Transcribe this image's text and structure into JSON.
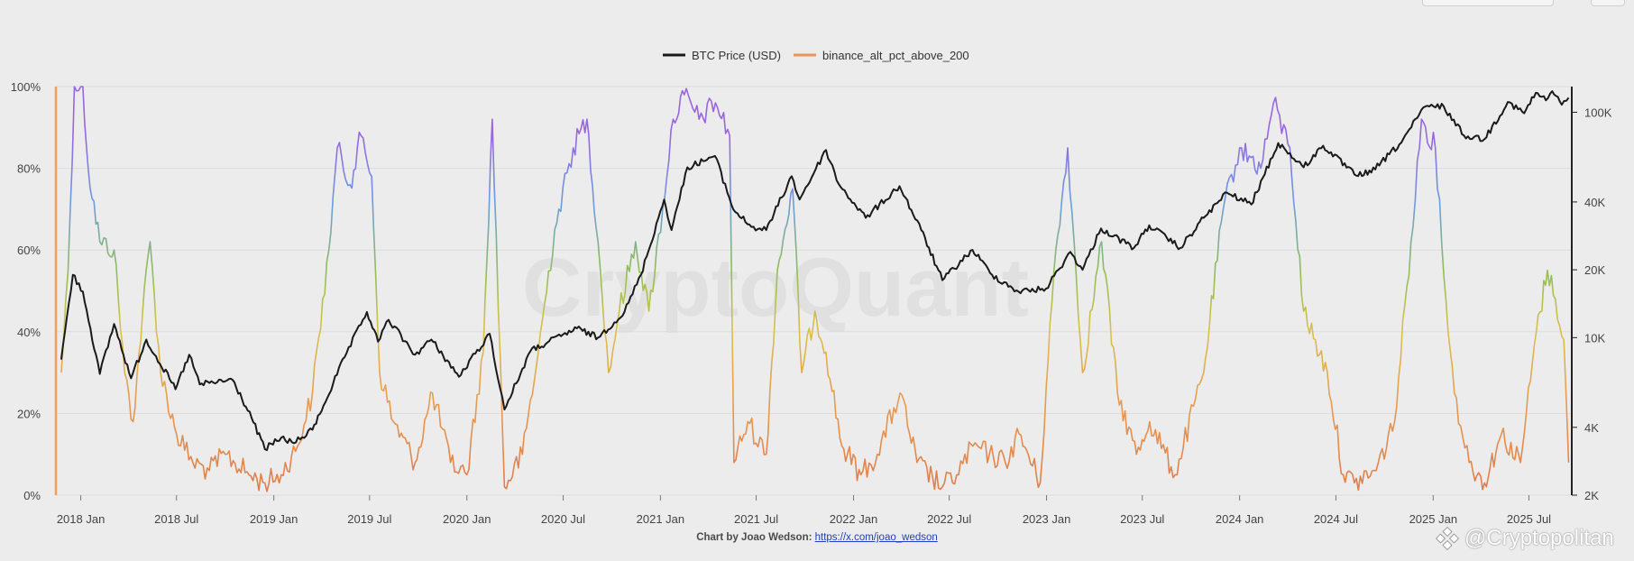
{
  "legend": {
    "btc_label": "BTC Price (USD)",
    "alt_label": "binance_alt_pct_above_200"
  },
  "credit": {
    "prefix": "Chart by Joao Wedson:",
    "link": "https://x.com/joao_wedson"
  },
  "watermark": {
    "text": "CryptoQuant",
    "brand": "@Cryptopolitan"
  },
  "colors": {
    "btc": "#1a1a1a",
    "alt_legend": "#e8935a",
    "left_axis": "#f0a05a",
    "gradient_stops": [
      "#e07a4a",
      "#e69a50",
      "#dcbf4a",
      "#8fbf55",
      "#6a9be0",
      "#9966e0"
    ]
  },
  "chart_data": {
    "type": "line",
    "left_axis": {
      "ticks": [
        0,
        20,
        40,
        60,
        80,
        100
      ],
      "tick_labels": [
        "0%",
        "20%",
        "40%",
        "60%",
        "80%",
        "100%"
      ],
      "range": [
        0,
        100
      ]
    },
    "right_axis": {
      "scale": "log",
      "ticks": [
        2000,
        4000,
        10000,
        20000,
        40000,
        100000
      ],
      "tick_labels": [
        "2K",
        "4K",
        "10K",
        "20K",
        "40K",
        "100K"
      ],
      "range": [
        2000,
        130000
      ]
    },
    "x_axis": {
      "range": [
        "2017-11-15",
        "2025-09-20"
      ],
      "ticks": [
        "2018-01-01",
        "2018-07-01",
        "2019-01-01",
        "2019-07-01",
        "2020-01-01",
        "2020-07-01",
        "2021-01-01",
        "2021-07-01",
        "2022-01-01",
        "2022-07-01",
        "2023-01-01",
        "2023-07-01",
        "2024-01-01",
        "2024-07-01",
        "2025-01-01",
        "2025-07-01"
      ],
      "tick_labels": [
        "2018 Jan",
        "2018 Jul",
        "2019 Jan",
        "2019 Jul",
        "2020 Jan",
        "2020 Jul",
        "2021 Jan",
        "2021 Jul",
        "2022 Jan",
        "2022 Jul",
        "2023 Jan",
        "2023 Jul",
        "2024 Jan",
        "2024 Jul",
        "2025 Jan",
        "2025 Jul"
      ]
    },
    "series": [
      {
        "name": "BTC Price (USD)",
        "axis": "right",
        "points": [
          [
            "2017-11-25",
            8000
          ],
          [
            "2017-12-17",
            19000
          ],
          [
            "2018-01-05",
            16000
          ],
          [
            "2018-02-06",
            6900
          ],
          [
            "2018-03-05",
            11500
          ],
          [
            "2018-04-06",
            6600
          ],
          [
            "2018-05-05",
            9800
          ],
          [
            "2018-06-29",
            5900
          ],
          [
            "2018-07-25",
            8400
          ],
          [
            "2018-08-14",
            6200
          ],
          [
            "2018-10-15",
            6500
          ],
          [
            "2018-11-20",
            4400
          ],
          [
            "2018-12-15",
            3200
          ],
          [
            "2019-01-15",
            3600
          ],
          [
            "2019-02-08",
            3400
          ],
          [
            "2019-03-15",
            3900
          ],
          [
            "2019-04-05",
            5000
          ],
          [
            "2019-05-15",
            8200
          ],
          [
            "2019-06-26",
            13000
          ],
          [
            "2019-07-17",
            9600
          ],
          [
            "2019-08-06",
            12000
          ],
          [
            "2019-09-25",
            8400
          ],
          [
            "2019-10-26",
            9800
          ],
          [
            "2019-12-17",
            6700
          ],
          [
            "2020-02-13",
            10400
          ],
          [
            "2020-03-12",
            4800
          ],
          [
            "2020-04-30",
            8700
          ],
          [
            "2020-06-01",
            9500
          ],
          [
            "2020-07-27",
            11000
          ],
          [
            "2020-09-05",
            10000
          ],
          [
            "2020-10-25",
            13000
          ],
          [
            "2020-11-25",
            19000
          ],
          [
            "2021-01-08",
            41000
          ],
          [
            "2021-01-22",
            30000
          ],
          [
            "2021-02-21",
            57000
          ],
          [
            "2021-04-14",
            64000
          ],
          [
            "2021-05-19",
            37000
          ],
          [
            "2021-06-22",
            31000
          ],
          [
            "2021-07-20",
            30000
          ],
          [
            "2021-09-06",
            52000
          ],
          [
            "2021-09-21",
            41000
          ],
          [
            "2021-11-10",
            68000
          ],
          [
            "2021-12-04",
            48000
          ],
          [
            "2022-01-24",
            34000
          ],
          [
            "2022-03-29",
            47000
          ],
          [
            "2022-05-09",
            30000
          ],
          [
            "2022-06-18",
            18000
          ],
          [
            "2022-08-14",
            24500
          ],
          [
            "2022-09-20",
            19000
          ],
          [
            "2022-11-09",
            16000
          ],
          [
            "2022-12-31",
            16500
          ],
          [
            "2023-02-15",
            24000
          ],
          [
            "2023-03-10",
            20000
          ],
          [
            "2023-04-14",
            30500
          ],
          [
            "2023-06-15",
            25000
          ],
          [
            "2023-07-14",
            31500
          ],
          [
            "2023-09-11",
            25000
          ],
          [
            "2023-10-25",
            34000
          ],
          [
            "2023-12-08",
            44000
          ],
          [
            "2024-01-23",
            39000
          ],
          [
            "2024-03-14",
            73000
          ],
          [
            "2024-05-01",
            57000
          ],
          [
            "2024-06-07",
            71000
          ],
          [
            "2024-08-05",
            53000
          ],
          [
            "2024-09-06",
            54000
          ],
          [
            "2024-10-29",
            72000
          ],
          [
            "2024-12-17",
            106000
          ],
          [
            "2025-01-21",
            106000
          ],
          [
            "2025-02-28",
            79000
          ],
          [
            "2025-04-08",
            76000
          ],
          [
            "2025-05-22",
            111000
          ],
          [
            "2025-06-22",
            99000
          ],
          [
            "2025-07-14",
            122000
          ],
          [
            "2025-08-02",
            113000
          ],
          [
            "2025-08-14",
            124000
          ],
          [
            "2025-09-01",
            108000
          ],
          [
            "2025-09-14",
            116000
          ]
        ]
      },
      {
        "name": "binance_alt_pct_above_200",
        "axis": "left",
        "points": [
          [
            "2017-11-25",
            30
          ],
          [
            "2017-12-08",
            55
          ],
          [
            "2017-12-20",
            100
          ],
          [
            "2018-01-05",
            100
          ],
          [
            "2018-01-15",
            80
          ],
          [
            "2018-02-06",
            62
          ],
          [
            "2018-03-05",
            60
          ],
          [
            "2018-03-25",
            30
          ],
          [
            "2018-04-10",
            18
          ],
          [
            "2018-04-28",
            45
          ],
          [
            "2018-05-12",
            62
          ],
          [
            "2018-06-01",
            30
          ],
          [
            "2018-07-01",
            15
          ],
          [
            "2018-08-01",
            8
          ],
          [
            "2018-09-01",
            6
          ],
          [
            "2018-10-01",
            10
          ],
          [
            "2018-11-15",
            5
          ],
          [
            "2018-12-15",
            3
          ],
          [
            "2019-01-15",
            5
          ],
          [
            "2019-02-15",
            12
          ],
          [
            "2019-03-15",
            25
          ],
          [
            "2019-04-15",
            60
          ],
          [
            "2019-05-01",
            85
          ],
          [
            "2019-05-25",
            76
          ],
          [
            "2019-06-15",
            88
          ],
          [
            "2019-07-05",
            78
          ],
          [
            "2019-07-20",
            30
          ],
          [
            "2019-08-15",
            18
          ],
          [
            "2019-09-25",
            8
          ],
          [
            "2019-10-28",
            25
          ],
          [
            "2019-12-01",
            8
          ],
          [
            "2020-01-01",
            5
          ],
          [
            "2020-02-01",
            35
          ],
          [
            "2020-02-18",
            92
          ],
          [
            "2020-03-12",
            2
          ],
          [
            "2020-04-15",
            10
          ],
          [
            "2020-05-15",
            35
          ],
          [
            "2020-06-15",
            65
          ],
          [
            "2020-07-20",
            85
          ],
          [
            "2020-08-15",
            92
          ],
          [
            "2020-09-05",
            62
          ],
          [
            "2020-09-25",
            30
          ],
          [
            "2020-10-15",
            45
          ],
          [
            "2020-11-15",
            62
          ],
          [
            "2020-12-10",
            45
          ],
          [
            "2021-01-05",
            70
          ],
          [
            "2021-01-25",
            92
          ],
          [
            "2021-02-15",
            98
          ],
          [
            "2021-03-15",
            92
          ],
          [
            "2021-04-15",
            96
          ],
          [
            "2021-05-12",
            88
          ],
          [
            "2021-05-20",
            8
          ],
          [
            "2021-06-15",
            18
          ],
          [
            "2021-07-20",
            10
          ],
          [
            "2021-08-10",
            55
          ],
          [
            "2021-09-08",
            75
          ],
          [
            "2021-09-25",
            30
          ],
          [
            "2021-10-20",
            45
          ],
          [
            "2021-11-10",
            35
          ],
          [
            "2021-12-10",
            12
          ],
          [
            "2022-01-15",
            5
          ],
          [
            "2022-02-15",
            10
          ],
          [
            "2022-03-30",
            25
          ],
          [
            "2022-05-01",
            8
          ],
          [
            "2022-06-18",
            2
          ],
          [
            "2022-07-15",
            5
          ],
          [
            "2022-08-15",
            12
          ],
          [
            "2022-09-15",
            10
          ],
          [
            "2022-10-15",
            8
          ],
          [
            "2022-11-10",
            15
          ],
          [
            "2022-12-20",
            3
          ],
          [
            "2023-01-15",
            55
          ],
          [
            "2023-02-10",
            85
          ],
          [
            "2023-03-10",
            30
          ],
          [
            "2023-04-15",
            62
          ],
          [
            "2023-05-15",
            25
          ],
          [
            "2023-06-20",
            10
          ],
          [
            "2023-07-15",
            18
          ],
          [
            "2023-09-01",
            5
          ],
          [
            "2023-10-25",
            30
          ],
          [
            "2023-12-01",
            70
          ],
          [
            "2024-01-01",
            85
          ],
          [
            "2024-02-10",
            80
          ],
          [
            "2024-03-05",
            96
          ],
          [
            "2024-04-05",
            85
          ],
          [
            "2024-05-01",
            45
          ],
          [
            "2024-06-15",
            30
          ],
          [
            "2024-07-15",
            5
          ],
          [
            "2024-08-05",
            3
          ],
          [
            "2024-09-15",
            6
          ],
          [
            "2024-10-20",
            18
          ],
          [
            "2024-11-20",
            62
          ],
          [
            "2024-12-10",
            92
          ],
          [
            "2025-01-05",
            85
          ],
          [
            "2025-01-25",
            48
          ],
          [
            "2025-02-10",
            25
          ],
          [
            "2025-03-10",
            8
          ],
          [
            "2025-04-08",
            3
          ],
          [
            "2025-05-10",
            15
          ],
          [
            "2025-06-15",
            8
          ],
          [
            "2025-07-15",
            40
          ],
          [
            "2025-08-05",
            55
          ],
          [
            "2025-08-20",
            48
          ],
          [
            "2025-09-05",
            38
          ],
          [
            "2025-09-14",
            8
          ]
        ]
      }
    ]
  }
}
